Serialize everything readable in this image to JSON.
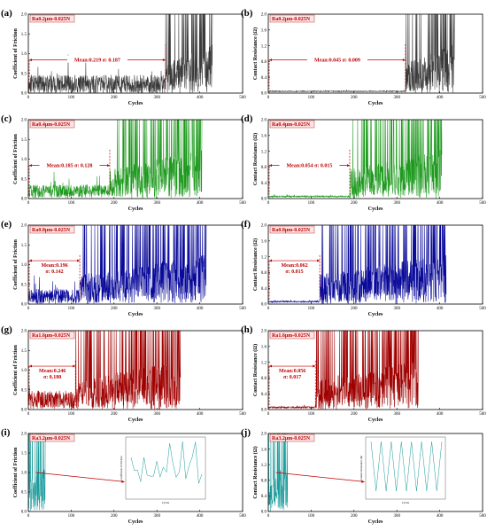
{
  "chart_data": [
    {
      "id": "a",
      "panel_label": "(a)",
      "type": "line",
      "condition": "Ra0.2μm-0.025N",
      "ylabel": "Coefficient of Friction",
      "xlabel": "Cycles",
      "xlim": [
        0,
        500
      ],
      "ylim": [
        0,
        2.0
      ],
      "xticks": [
        "0",
        "100",
        "200",
        "300",
        "400",
        "500"
      ],
      "yticks": [
        "0.0",
        "0.5",
        "1.0",
        "1.5",
        "2.0"
      ],
      "series_color": "#3a3a3a",
      "stats": [
        "Mean:0.219  σ: 0.187"
      ],
      "stable_range": [
        0,
        320
      ],
      "stable_mean": 0.219,
      "stable_sd": 0.187,
      "fail_end": 430
    },
    {
      "id": "b",
      "panel_label": "(b)",
      "type": "line",
      "condition": "Ra0.2μm-0.025N",
      "ylabel": "Contact Resistance (Ω)",
      "xlabel": "Cycles",
      "xlim": [
        0,
        500
      ],
      "ylim": [
        0,
        2.0
      ],
      "xticks": [
        "0",
        "100",
        "200",
        "300",
        "400",
        "500"
      ],
      "yticks": [
        "0.0",
        "0.4",
        "0.8",
        "1.2",
        "1.6",
        "2.0"
      ],
      "series_color": "#3a3a3a",
      "stats": [
        "Mean:0.045  σ: 0.009"
      ],
      "stable_range": [
        0,
        320
      ],
      "stable_mean": 0.045,
      "stable_sd": 0.009,
      "fail_end": 435
    },
    {
      "id": "c",
      "panel_label": "(c)",
      "type": "line",
      "condition": "Ra0.4μm-0.025N",
      "ylabel": "Coefficient of Friction",
      "xlabel": "Cycles",
      "xlim": [
        0,
        500
      ],
      "ylim": [
        0,
        2.0
      ],
      "xticks": [
        "0",
        "100",
        "200",
        "300",
        "400",
        "500"
      ],
      "yticks": [
        "0.0",
        "0.5",
        "1.0",
        "1.5",
        "2.0"
      ],
      "series_color": "#1e9a1e",
      "stats": [
        "Mean:0.185  σ: 0.128"
      ],
      "stable_range": [
        0,
        190
      ],
      "stable_mean": 0.185,
      "stable_sd": 0.128,
      "fail_end": 405
    },
    {
      "id": "d",
      "panel_label": "(d)",
      "type": "line",
      "condition": "Ra0.4μm-0.025N",
      "ylabel": "Contact Resistance (Ω)",
      "xlabel": "Cycles",
      "xlim": [
        0,
        500
      ],
      "ylim": [
        0,
        2.0
      ],
      "xticks": [
        "0",
        "100",
        "200",
        "300",
        "400",
        "500"
      ],
      "yticks": [
        "0.0",
        "0.4",
        "0.8",
        "1.2",
        "1.6",
        "2.0"
      ],
      "series_color": "#1e9a1e",
      "stats": [
        "Mean:0.054  σ: 0.015"
      ],
      "stable_range": [
        0,
        190
      ],
      "stable_mean": 0.054,
      "stable_sd": 0.015,
      "fail_end": 405
    },
    {
      "id": "e",
      "panel_label": "(e)",
      "type": "line",
      "condition": "Ra0.8μm-0.025N",
      "ylabel": "Coefficient of Friction",
      "xlabel": "Cycles",
      "xlim": [
        0,
        500
      ],
      "ylim": [
        0,
        2.0
      ],
      "xticks": [
        "0",
        "100",
        "200",
        "300",
        "400",
        "500"
      ],
      "yticks": [
        "0.0",
        "0.5",
        "1.0",
        "1.5",
        "2.0"
      ],
      "series_color": "#0a0a9a",
      "stats": [
        "Mean:0.196",
        "σ: 0.142"
      ],
      "stable_range": [
        0,
        120
      ],
      "stable_mean": 0.196,
      "stable_sd": 0.142,
      "fail_end": 415
    },
    {
      "id": "f",
      "panel_label": "(f)",
      "type": "line",
      "condition": "Ra0.8μm-0.025N",
      "ylabel": "Contact Resistance (Ω)",
      "xlabel": "Cycles",
      "xlim": [
        0,
        500
      ],
      "ylim": [
        0,
        2.0
      ],
      "xticks": [
        "0",
        "100",
        "200",
        "300",
        "400",
        "500"
      ],
      "yticks": [
        "0.0",
        "0.4",
        "0.8",
        "1.2",
        "1.6",
        "2.0"
      ],
      "series_color": "#0a0a9a",
      "stats": [
        "Mean:0.062",
        "σ: 0.015"
      ],
      "stable_range": [
        0,
        120
      ],
      "stable_mean": 0.062,
      "stable_sd": 0.015,
      "fail_end": 415
    },
    {
      "id": "g",
      "panel_label": "(g)",
      "type": "line",
      "condition": "Ra1.6μm-0.025N",
      "ylabel": "Coefficient of Friction",
      "xlabel": "Cycles",
      "xlim": [
        0,
        500
      ],
      "ylim": [
        0,
        2.0
      ],
      "xticks": [
        "0",
        "100",
        "200",
        "300",
        "400",
        "500"
      ],
      "yticks": [
        "0.0",
        "0.5",
        "1.0",
        "1.5",
        "2.0"
      ],
      "series_color": "#a00000",
      "stats": [
        "Mean:0.246",
        "σ: 0.180"
      ],
      "stable_range": [
        0,
        110
      ],
      "stable_mean": 0.246,
      "stable_sd": 0.18,
      "fail_end": 355
    },
    {
      "id": "h",
      "panel_label": "(h)",
      "type": "line",
      "condition": "Ra1.6μm-0.025N",
      "ylabel": "Contact Resistance (Ω)",
      "xlabel": "Cycles",
      "xlim": [
        0,
        500
      ],
      "ylim": [
        0,
        2.0
      ],
      "xticks": [
        "0",
        "100",
        "200",
        "300",
        "400",
        "500"
      ],
      "yticks": [
        "0.0",
        "0.4",
        "0.8",
        "1.2",
        "1.6",
        "2.0"
      ],
      "series_color": "#a00000",
      "stats": [
        "Mean:0.056",
        "σ: 0.017"
      ],
      "stable_range": [
        0,
        110
      ],
      "stable_mean": 0.056,
      "stable_sd": 0.017,
      "fail_end": 350
    },
    {
      "id": "i",
      "panel_label": "(i)",
      "type": "line",
      "condition": "Ra3.2μm-0.025N",
      "ylabel": "Coefficient of Friction",
      "xlabel": "Cycles",
      "xlim": [
        0,
        500
      ],
      "ylim": [
        0,
        2.0
      ],
      "xticks": [
        "0",
        "100",
        "200",
        "300",
        "400",
        "500"
      ],
      "yticks": [
        "0.0",
        "0.5",
        "1.0",
        "1.5",
        "2.0"
      ],
      "series_color": "#1a9a9a",
      "stats": [],
      "stable_range": [
        0,
        0
      ],
      "fail_end": 40,
      "inset": {
        "ylabel": "Coefficient of Friction",
        "xlabel": "Cycles"
      }
    },
    {
      "id": "j",
      "panel_label": "(j)",
      "type": "line",
      "condition": "Ra3.2μm-0.025N",
      "ylabel": "Contact Resistance (Ω)",
      "xlabel": "Cycles",
      "xlim": [
        0,
        500
      ],
      "ylim": [
        0,
        2.0
      ],
      "xticks": [
        "0",
        "100",
        "200",
        "300",
        "400",
        "500"
      ],
      "yticks": [
        "0.0",
        "0.4",
        "0.8",
        "1.2",
        "1.6",
        "2.0"
      ],
      "series_color": "#1a9a9a",
      "stats": [],
      "stable_range": [
        0,
        0
      ],
      "fail_end": 45,
      "inset": {
        "ylabel": "Contact Resistance (Ω)",
        "xlabel": "Cycles"
      }
    }
  ],
  "colors": {
    "annotation": "#c00000"
  }
}
